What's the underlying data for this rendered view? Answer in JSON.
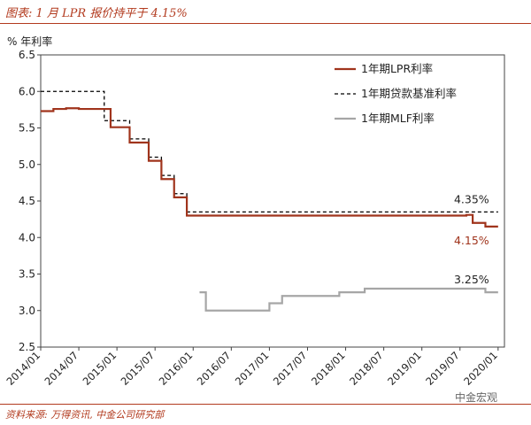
{
  "header": {
    "title": "图表: 1 月 LPR 报价持平于 4.15%"
  },
  "footer": {
    "source": "资料来源: 万得资讯, 中金公司研究部",
    "watermark": "中金宏观"
  },
  "colors": {
    "lpr": "#a0341c",
    "loan_base": "#000000",
    "mlf": "#a6a6a6",
    "title": "#b23a1e"
  },
  "chart_data": {
    "type": "line",
    "title": "图表: 1 月 LPR 报价持平于 4.15%",
    "ylabel": "% 年利率",
    "xlabel": "",
    "ylim": [
      2.5,
      6.5
    ],
    "yticks": [
      2.5,
      3.0,
      3.5,
      4.0,
      4.5,
      5.0,
      5.5,
      6.0,
      6.5
    ],
    "ytick_labels": [
      "2.5",
      "3.0",
      "3.5",
      "4.0",
      "4.5",
      "5.0",
      "5.5",
      "6.0",
      "6.5"
    ],
    "xlim": [
      "2014-01",
      "2020-02"
    ],
    "xtick_labels": [
      "2014/01",
      "2014/07",
      "2015/01",
      "2015/07",
      "2016/01",
      "2016/07",
      "2017/01",
      "2017/07",
      "2018/01",
      "2018/07",
      "2019/01",
      "2019/07",
      "2020/01"
    ],
    "grid": false,
    "legend_position": "top-right",
    "legend": [
      "1年期LPR利率",
      "1年期贷款基准利率",
      "1年期MLF利率"
    ],
    "series": [
      {
        "name": "1年期LPR利率",
        "style": "solid",
        "points": [
          [
            "2014-01",
            5.73
          ],
          [
            "2014-03",
            5.76
          ],
          [
            "2014-05",
            5.77
          ],
          [
            "2014-07",
            5.76
          ],
          [
            "2014-11",
            5.76
          ],
          [
            "2014-12",
            5.51
          ],
          [
            "2015-02",
            5.51
          ],
          [
            "2015-03",
            5.3
          ],
          [
            "2015-05",
            5.3
          ],
          [
            "2015-06",
            5.05
          ],
          [
            "2015-07",
            5.05
          ],
          [
            "2015-08",
            4.8
          ],
          [
            "2015-09",
            4.8
          ],
          [
            "2015-10",
            4.55
          ],
          [
            "2015-11",
            4.55
          ],
          [
            "2015-12",
            4.3
          ],
          [
            "2019-08",
            4.31
          ],
          [
            "2019-09",
            4.2
          ],
          [
            "2019-11",
            4.15
          ],
          [
            "2020-01",
            4.15
          ]
        ]
      },
      {
        "name": "1年期贷款基准利率",
        "style": "dashed",
        "points": [
          [
            "2014-01",
            6.0
          ],
          [
            "2014-11",
            6.0
          ],
          [
            "2014-11",
            5.6
          ],
          [
            "2015-02",
            5.6
          ],
          [
            "2015-03",
            5.35
          ],
          [
            "2015-05",
            5.35
          ],
          [
            "2015-06",
            5.1
          ],
          [
            "2015-07",
            5.1
          ],
          [
            "2015-08",
            4.85
          ],
          [
            "2015-09",
            4.85
          ],
          [
            "2015-10",
            4.6
          ],
          [
            "2015-11",
            4.6
          ],
          [
            "2015-12",
            4.35
          ],
          [
            "2020-01",
            4.35
          ]
        ]
      },
      {
        "name": "1年期MLF利率",
        "style": "solid",
        "points": [
          [
            "2016-02",
            3.25
          ],
          [
            "2016-03",
            3.25
          ],
          [
            "2016-03",
            3.0
          ],
          [
            "2017-01",
            3.0
          ],
          [
            "2017-01",
            3.1
          ],
          [
            "2017-03",
            3.1
          ],
          [
            "2017-03",
            3.2
          ],
          [
            "2017-12",
            3.2
          ],
          [
            "2017-12",
            3.25
          ],
          [
            "2018-04",
            3.25
          ],
          [
            "2018-04",
            3.3
          ],
          [
            "2019-11",
            3.3
          ],
          [
            "2019-11",
            3.25
          ],
          [
            "2020-01",
            3.25
          ]
        ]
      }
    ],
    "annotations": [
      {
        "text": "4.35%",
        "series": "1年期贷款基准利率"
      },
      {
        "text": "4.15%",
        "series": "1年期LPR利率"
      },
      {
        "text": "3.25%",
        "series": "1年期MLF利率"
      }
    ]
  }
}
